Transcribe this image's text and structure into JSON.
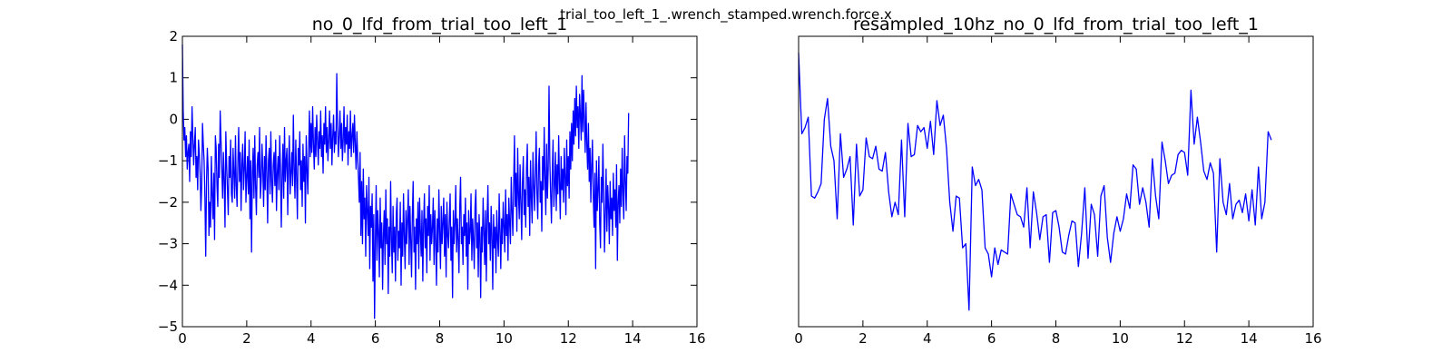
{
  "figure": {
    "suptitle": "trial_too_left_1_.wrench_stamped.wrench.force.x"
  },
  "chart_data": [
    {
      "type": "line",
      "title": "no_0_lfd_from_trial_too_left_1",
      "xlabel": "",
      "ylabel": "",
      "xlim": [
        0,
        16
      ],
      "ylim": [
        -5,
        2
      ],
      "xticks": [
        0,
        2,
        4,
        6,
        8,
        10,
        12,
        14,
        16
      ],
      "yticks": [
        -5,
        -4,
        -3,
        -2,
        -1,
        0,
        1,
        2
      ],
      "x_start": 0,
      "x_step": 0.025,
      "series": [
        {
          "color": "#0000ff",
          "y": [
            1.8,
            0.2,
            -0.5,
            -0.2,
            -0.9,
            -0.4,
            -1.2,
            -0.8,
            -0.6,
            -1.5,
            -0.3,
            -0.9,
            0.3,
            -0.4,
            -1.1,
            -0.6,
            -0.2,
            -1.4,
            -0.9,
            -1.7,
            -0.5,
            -0.8,
            -1.3,
            -2.2,
            -1.6,
            -0.1,
            -0.6,
            -1.0,
            -1.9,
            -3.3,
            -1.5,
            -0.7,
            -1.2,
            -2.8,
            -2.0,
            -2.6,
            -0.9,
            -1.8,
            -2.4,
            -1.3,
            -2.9,
            -0.4,
            -0.7,
            -1.6,
            -2.1,
            -0.6,
            -1.4,
            0.2,
            -0.5,
            -1.2,
            -1.9,
            -0.8,
            -1.5,
            -2.6,
            -0.3,
            -1.1,
            -1.7,
            -2.3,
            -0.9,
            -1.4,
            -0.5,
            -1.8,
            -2.0,
            -0.7,
            -1.3,
            -1.9,
            -0.4,
            -1.6,
            -2.1,
            -1.0,
            -0.2,
            -1.5,
            -0.8,
            -2.2,
            -1.1,
            -0.6,
            -1.7,
            -1.2,
            -0.3,
            -2.0,
            -1.4,
            -0.9,
            -1.8,
            -0.5,
            -2.4,
            -1.0,
            -3.2,
            -1.3,
            -0.7,
            -1.9,
            -0.4,
            -1.6,
            -2.3,
            -1.1,
            -0.8,
            -1.4,
            -0.2,
            -1.9,
            -1.5,
            -0.6,
            -1.2,
            -2.1,
            -0.9,
            -1.7,
            -0.4,
            -1.3,
            -2.5,
            -1.0,
            -0.7,
            -1.8,
            -0.3,
            -1.5,
            -2.0,
            -1.1,
            -0.8,
            -1.6,
            -0.5,
            -2.2,
            -1.3,
            -0.9,
            -1.7,
            -0.4,
            -1.2,
            -2.6,
            -1.4,
            -0.6,
            -1.9,
            -0.2,
            -1.5,
            -1.0,
            -0.7,
            -2.3,
            -1.1,
            -0.4,
            -1.8,
            -1.3,
            -0.8,
            -1.6,
            0.1,
            -1.2,
            -1.9,
            -0.5,
            -1.4,
            -2.4,
            -0.7,
            -1.1,
            -0.3,
            -1.7,
            -1.0,
            -2.1,
            -0.6,
            -1.5,
            -0.9,
            -2.5,
            -0.4,
            -1.2,
            -1.8,
            -0.8,
            0.2,
            -0.9,
            -0.1,
            -0.8,
            0.3,
            -0.6,
            -1.2,
            -0.2,
            -0.9,
            0.1,
            -0.5,
            -1.1,
            -0.3,
            -0.7,
            0.2,
            -0.9,
            -0.4,
            -1.3,
            -0.1,
            -0.6,
            0.3,
            -0.8,
            -0.2,
            -1.0,
            -0.5,
            0.2,
            -0.7,
            -0.1,
            -1.1,
            -0.4,
            0.1,
            -0.8,
            -0.3,
            -0.6,
            1.1,
            -0.2,
            -0.9,
            -0.4,
            0.2,
            -0.7,
            -0.1,
            -1.0,
            -0.5,
            0.3,
            -0.8,
            -0.2,
            -0.6,
            0.1,
            -1.1,
            -0.3,
            -0.7,
            0.2,
            -0.9,
            -0.4,
            -0.1,
            -0.8,
            0.1,
            -0.6,
            -1.2,
            -0.3,
            -0.9,
            -1.4,
            -2.0,
            -0.8,
            -2.8,
            -1.5,
            -3.0,
            -1.2,
            -2.4,
            -1.9,
            -3.3,
            -1.6,
            -2.2,
            -2.8,
            -1.4,
            -3.6,
            -2.1,
            -2.6,
            -1.8,
            -3.9,
            -2.3,
            -4.8,
            -2.9,
            -1.6,
            -3.4,
            -2.2,
            -2.7,
            -3.8,
            -1.9,
            -3.1,
            -2.5,
            -4.1,
            -2.8,
            -2.2,
            -3.5,
            -1.7,
            -3.0,
            -2.4,
            -4.2,
            -2.6,
            -3.3,
            -1.5,
            -2.9,
            -3.7,
            -2.1,
            -3.2,
            -2.6,
            -3.9,
            -2.3,
            -1.9,
            -3.4,
            -2.7,
            -3.1,
            -2.0,
            -4.0,
            -2.5,
            -3.3,
            -1.8,
            -2.8,
            -3.6,
            -2.2,
            -3.0,
            -2.4,
            -1.7,
            -3.5,
            -2.1,
            -2.9,
            -3.8,
            -2.3,
            -1.5,
            -3.2,
            -2.6,
            -4.1,
            -2.4,
            -3.0,
            -2.0,
            -3.6,
            -1.9,
            -2.7,
            -3.3,
            -2.2,
            -3.9,
            -2.5,
            -1.8,
            -3.1,
            -2.4,
            -3.7,
            -2.1,
            -2.8,
            -1.6,
            -3.4,
            -2.3,
            -3.0,
            -2.6,
            -1.9,
            -3.5,
            -2.2,
            -2.9,
            -4.0,
            -2.4,
            -3.2,
            -1.7,
            -2.7,
            -3.6,
            -2.1,
            -3.0,
            -2.5,
            -1.9,
            -3.3,
            -2.3,
            -3.8,
            -2.0,
            -2.8,
            -3.1,
            -2.4,
            -1.8,
            -3.4,
            -2.6,
            -4.3,
            -2.2,
            -3.0,
            -2.5,
            -1.6,
            -3.2,
            -2.4,
            -2.9,
            -3.7,
            -2.1,
            -1.4,
            -3.0,
            -2.6,
            -3.5,
            -2.3,
            -2.8,
            -1.9,
            -3.3,
            -2.5,
            -4.1,
            -2.2,
            -3.0,
            -2.7,
            -1.8,
            -3.4,
            -2.4,
            -2.9,
            -3.6,
            -2.1,
            -1.7,
            -3.1,
            -2.5,
            -3.8,
            -2.3,
            -2.8,
            -4.3,
            -2.6,
            -3.2,
            -1.9,
            -2.7,
            -3.5,
            -2.2,
            -3.9,
            -2.4,
            -1.6,
            -3.0,
            -2.5,
            -3.4,
            -2.1,
            -2.8,
            -4.1,
            -2.3,
            -3.1,
            -2.6,
            -3.7,
            -2.2,
            -2.9,
            -3.3,
            -1.8,
            -2.7,
            -3.6,
            -2.4,
            -3.0,
            -2.0,
            -2.6,
            -3.2,
            -1.7,
            -2.8,
            -2.3,
            -3.4,
            -1.9,
            -2.5,
            -3.0,
            -1.4,
            -2.2,
            -2.8,
            -1.6,
            -0.4,
            -2.1,
            -1.3,
            -2.7,
            -0.7,
            -1.8,
            -2.4,
            -1.1,
            -2.0,
            -2.9,
            -1.5,
            -0.9,
            -2.3,
            -1.7,
            -2.6,
            -1.2,
            -0.6,
            -2.1,
            -1.4,
            -2.8,
            -1.0,
            -1.9,
            -2.5,
            -0.8,
            -1.6,
            -2.2,
            -1.3,
            -0.3,
            -1.8,
            -2.4,
            -1.1,
            -0.7,
            -2.0,
            -1.5,
            -2.7,
            -0.9,
            -1.7,
            -0.2,
            -1.4,
            -2.3,
            -0.6,
            -1.9,
            -1.2,
            0.8,
            -1.0,
            -1.8,
            -2.5,
            -1.3,
            -0.5,
            -2.1,
            -1.6,
            -0.8,
            -2.2,
            -1.1,
            -1.8,
            -0.4,
            -1.5,
            -2.4,
            -0.9,
            -1.7,
            -1.2,
            -2.0,
            -0.7,
            -1.4,
            -2.3,
            -0.5,
            -1.6,
            -0.9,
            -1.9,
            -0.3,
            -1.2,
            -0.1,
            -1.0,
            0.2,
            -0.6,
            0.5,
            -0.4,
            0.8,
            -0.2,
            0.3,
            -0.7,
            0.6,
            0.1,
            -0.5,
            1.05,
            -0.3,
            0.7,
            0.0,
            -0.8,
            0.4,
            -0.6,
            -1.2,
            -0.1,
            -1.5,
            -0.7,
            -2.0,
            -1.1,
            -0.5,
            -1.8,
            -2.6,
            -1.3,
            -3.6,
            -1.0,
            -2.2,
            -1.7,
            -0.9,
            -2.5,
            -3.1,
            -1.4,
            -2.0,
            -0.6,
            -1.8,
            -3.2,
            -2.3,
            -1.2,
            -2.7,
            -1.6,
            -2.1,
            -3.0,
            -1.5,
            -2.4,
            -1.9,
            -2.8,
            -1.3,
            -2.2,
            -1.7,
            -2.6,
            -1.1,
            -3.4,
            -2.0,
            -1.6,
            -2.5,
            -1.2,
            -2.1,
            -0.7,
            -1.8,
            -2.4,
            -0.4,
            -1.5,
            -2.2,
            -0.9,
            -1.3,
            0.15
          ]
        }
      ]
    },
    {
      "type": "line",
      "title": "resampled_10hz_no_0_lfd_from_trial_too_left_1",
      "xlabel": "",
      "ylabel": "",
      "xlim": [
        0,
        16
      ],
      "ylim": [
        -5,
        2
      ],
      "xticks": [
        0,
        2,
        4,
        6,
        8,
        10,
        12,
        14,
        16
      ],
      "yticks": [],
      "x_start": 0,
      "x_step": 0.1,
      "series": [
        {
          "color": "#0000ff",
          "y": [
            1.6,
            -0.35,
            -0.2,
            0.05,
            -1.85,
            -1.9,
            -1.75,
            -1.55,
            0.0,
            0.5,
            -0.65,
            -1.0,
            -2.4,
            -0.35,
            -1.4,
            -1.2,
            -0.9,
            -2.55,
            -0.6,
            -1.85,
            -1.7,
            -0.45,
            -0.9,
            -0.95,
            -0.65,
            -1.2,
            -1.25,
            -0.8,
            -1.75,
            -2.35,
            -2.0,
            -2.3,
            -0.5,
            -2.35,
            -0.1,
            -0.9,
            -0.85,
            -0.15,
            -0.3,
            -0.2,
            -0.7,
            -0.05,
            -0.85,
            0.45,
            -0.15,
            0.1,
            -0.7,
            -2.0,
            -2.7,
            -1.85,
            -1.9,
            -3.1,
            -3.0,
            -4.6,
            -1.15,
            -1.6,
            -1.45,
            -1.7,
            -3.1,
            -3.25,
            -3.8,
            -3.1,
            -3.5,
            -3.15,
            -3.2,
            -3.25,
            -1.8,
            -2.05,
            -2.3,
            -2.35,
            -2.6,
            -1.65,
            -3.1,
            -1.75,
            -2.25,
            -2.9,
            -2.35,
            -2.3,
            -3.45,
            -2.25,
            -2.2,
            -2.6,
            -3.2,
            -3.25,
            -2.8,
            -2.45,
            -2.5,
            -3.55,
            -2.75,
            -1.65,
            -3.35,
            -2.05,
            -2.3,
            -3.3,
            -1.85,
            -1.6,
            -2.85,
            -3.45,
            -2.75,
            -2.35,
            -2.7,
            -2.4,
            -1.8,
            -2.15,
            -1.1,
            -1.2,
            -2.05,
            -1.65,
            -2.0,
            -2.6,
            -0.95,
            -1.85,
            -2.4,
            -0.55,
            -1.0,
            -1.55,
            -1.35,
            -1.3,
            -0.85,
            -0.75,
            -0.8,
            -1.35,
            0.7,
            -0.6,
            0.05,
            -0.55,
            -1.25,
            -1.45,
            -1.05,
            -1.3,
            -3.2,
            -0.95,
            -2.0,
            -2.3,
            -1.55,
            -2.4,
            -2.05,
            -1.95,
            -2.25,
            -1.8,
            -2.45,
            -1.7,
            -2.55,
            -1.15,
            -2.4,
            -2.0,
            -0.3,
            -0.5
          ]
        }
      ]
    }
  ]
}
